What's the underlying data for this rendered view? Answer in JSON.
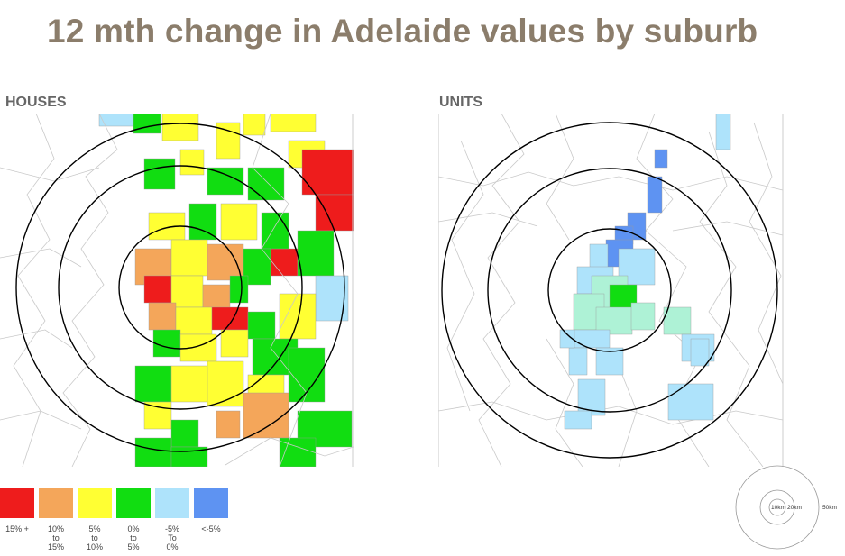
{
  "title": "12 mth change in Adelaide values by suburb",
  "panels": {
    "houses": {
      "label": "HOUSES"
    },
    "units": {
      "label": "UNITS"
    }
  },
  "legend": [
    {
      "label": "15% +",
      "color": "#ee1c1c"
    },
    {
      "label": "10%\nto\n15%",
      "color": "#f4a65a"
    },
    {
      "label": "5%\nto\n10%",
      "color": "#ffff33"
    },
    {
      "label": "0%\nto\n5%",
      "color": "#11dd11"
    },
    {
      "label": "-5%\nTo\n0%",
      "color": "#aee3fb"
    },
    {
      "label": "<-5%",
      "color": "#5e93f2"
    }
  ],
  "scale": {
    "inner": "10km",
    "middle": "20km",
    "outer": "50km"
  },
  "colors": {
    "title": "#8b7d6b",
    "ring": "#000000",
    "boundary": "#c9c9c9",
    "units_fill": "#aef2d6"
  }
}
